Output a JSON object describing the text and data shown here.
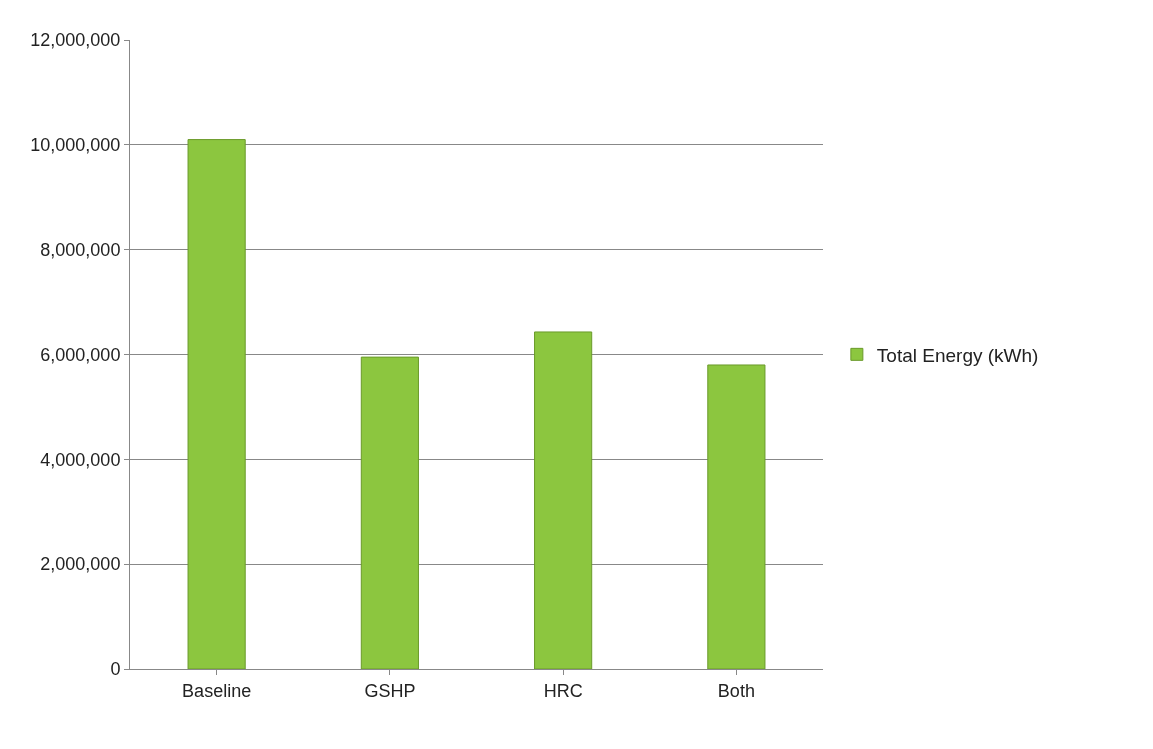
{
  "chart_data": {
    "type": "bar",
    "categories": [
      "Baseline",
      "GSHP",
      "HRC",
      "Both"
    ],
    "series": [
      {
        "name": "Total Energy (kWh)",
        "color": "#8cc63f",
        "values": [
          10100000,
          5950000,
          6430000,
          5800000
        ]
      }
    ],
    "ylim": [
      0,
      12000000
    ],
    "yticks": [
      {
        "value": 0,
        "label": "0"
      },
      {
        "value": 2000000,
        "label": "2,000,000"
      },
      {
        "value": 4000000,
        "label": "4,000,000"
      },
      {
        "value": 6000000,
        "label": "6,000,000"
      },
      {
        "value": 8000000,
        "label": "8,000,000"
      },
      {
        "value": 10000000,
        "label": "10,000,000"
      },
      {
        "value": 12000000,
        "label": "12,000,000"
      }
    ],
    "grid": "y",
    "legend": "right"
  }
}
